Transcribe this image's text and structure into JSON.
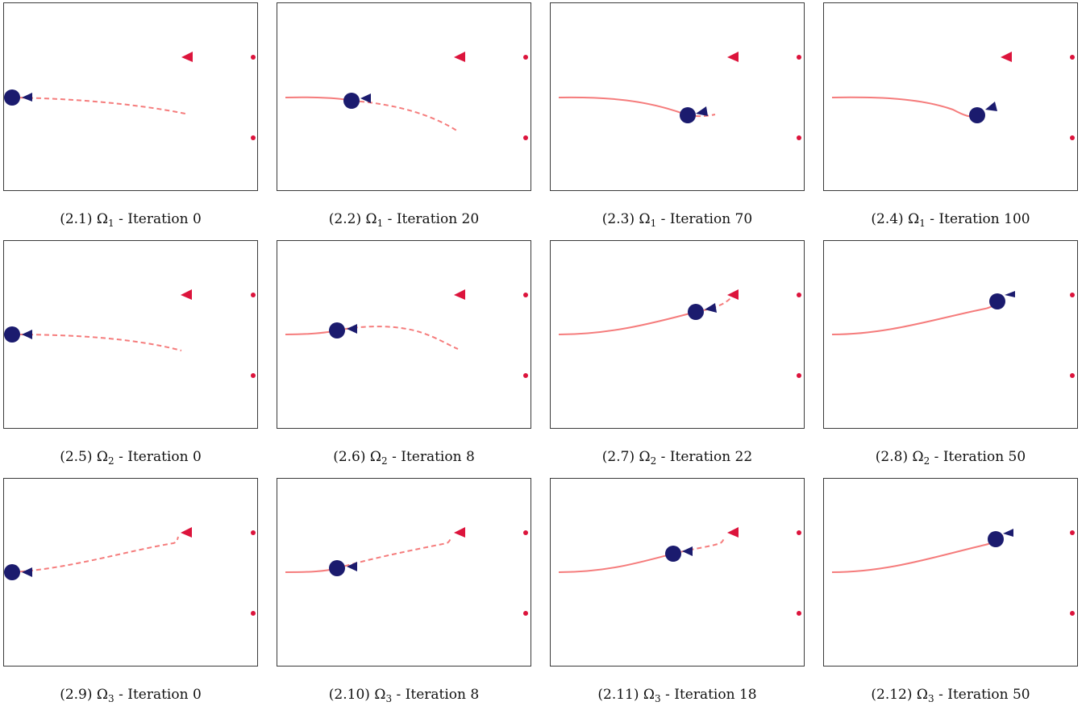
{
  "colors": {
    "robot": "#1b1b6e",
    "path": "#f57c7c",
    "target": "#dc143c",
    "border": "#3a3a3a"
  },
  "panels": [
    {
      "id": "2.1",
      "omega_index": "1",
      "iteration_label": "Iteration 0",
      "caption_prefix": "(2.1)",
      "omega_symbol": "Ω"
    },
    {
      "id": "2.2",
      "omega_index": "1",
      "iteration_label": "Iteration 20",
      "caption_prefix": "(2.2)",
      "omega_symbol": "Ω"
    },
    {
      "id": "2.3",
      "omega_index": "1",
      "iteration_label": "Iteration 70",
      "caption_prefix": "(2.3)",
      "omega_symbol": "Ω"
    },
    {
      "id": "2.4",
      "omega_index": "1",
      "iteration_label": "Iteration 100",
      "caption_prefix": "(2.4)",
      "omega_symbol": "Ω"
    },
    {
      "id": "2.5",
      "omega_index": "2",
      "iteration_label": "Iteration 0",
      "caption_prefix": "(2.5)",
      "omega_symbol": "Ω"
    },
    {
      "id": "2.6",
      "omega_index": "2",
      "iteration_label": "Iteration 8",
      "caption_prefix": "(2.6)",
      "omega_symbol": "Ω"
    },
    {
      "id": "2.7",
      "omega_index": "2",
      "iteration_label": "Iteration 22",
      "caption_prefix": "(2.7)",
      "omega_symbol": "Ω"
    },
    {
      "id": "2.8",
      "omega_index": "2",
      "iteration_label": "Iteration 50",
      "caption_prefix": "(2.8)",
      "omega_symbol": "Ω"
    },
    {
      "id": "2.9",
      "omega_index": "3",
      "iteration_label": "Iteration 0",
      "caption_prefix": "(2.9)",
      "omega_symbol": "Ω"
    },
    {
      "id": "2.10",
      "omega_index": "3",
      "iteration_label": "Iteration 8",
      "caption_prefix": "(2.10)",
      "omega_symbol": "Ω"
    },
    {
      "id": "2.11",
      "omega_index": "3",
      "iteration_label": "Iteration 18",
      "caption_prefix": "(2.11)",
      "omega_symbol": "Ω"
    },
    {
      "id": "2.12",
      "omega_index": "3",
      "iteration_label": "Iteration 50",
      "caption_prefix": "(2.12)",
      "omega_symbol": "Ω"
    }
  ]
}
